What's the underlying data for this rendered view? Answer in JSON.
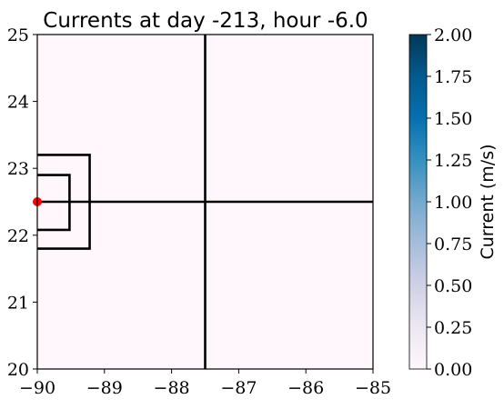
{
  "chart_data": {
    "type": "heatmap",
    "title": "Currents at day -213, hour -6.0",
    "xlabel": "",
    "ylabel": "",
    "xlim": [
      -90,
      -85
    ],
    "ylim": [
      20,
      25
    ],
    "x_ticks": [
      -90,
      -89,
      -88,
      -87,
      -86,
      -85
    ],
    "x_tick_labels": [
      "−90",
      "−89",
      "−88",
      "−87",
      "−86",
      "−85"
    ],
    "y_ticks": [
      20,
      21,
      22,
      23,
      24,
      25
    ],
    "y_tick_labels": [
      "20",
      "21",
      "22",
      "23",
      "24",
      "25"
    ],
    "field_value": 0.0,
    "field_color": "#fff7fb",
    "grid": false,
    "lines": [
      {
        "name": "vertical-divider",
        "x": [
          -87.5,
          -87.5
        ],
        "y": [
          20,
          25
        ]
      },
      {
        "name": "horizontal-divider",
        "x": [
          -90,
          -85
        ],
        "y": [
          22.5,
          22.5
        ]
      },
      {
        "name": "outer-box",
        "x": [
          -90,
          -89.22,
          -89.22,
          -90
        ],
        "y": [
          23.2,
          23.2,
          21.8,
          21.8
        ]
      },
      {
        "name": "inner-box",
        "x": [
          -90,
          -89.52,
          -89.52,
          -90
        ],
        "y": [
          22.9,
          22.9,
          22.08,
          22.08
        ]
      }
    ],
    "marker": {
      "x": -90,
      "y": 22.5,
      "color": "#ff0000"
    },
    "colorbar": {
      "label": "Current (m/s)",
      "min": 0.0,
      "max": 2.0,
      "ticks": [
        0.0,
        0.25,
        0.5,
        0.75,
        1.0,
        1.25,
        1.5,
        1.75,
        2.0
      ],
      "tick_labels": [
        "0.00",
        "0.25",
        "0.50",
        "0.75",
        "1.00",
        "1.25",
        "1.50",
        "1.75",
        "2.00"
      ],
      "colormap": "PuBu",
      "colors": [
        "#fff7fb",
        "#ece7f2",
        "#d0d1e6",
        "#a6bddb",
        "#74a9cf",
        "#3690c0",
        "#0570b0",
        "#045a8d",
        "#023858"
      ]
    }
  }
}
